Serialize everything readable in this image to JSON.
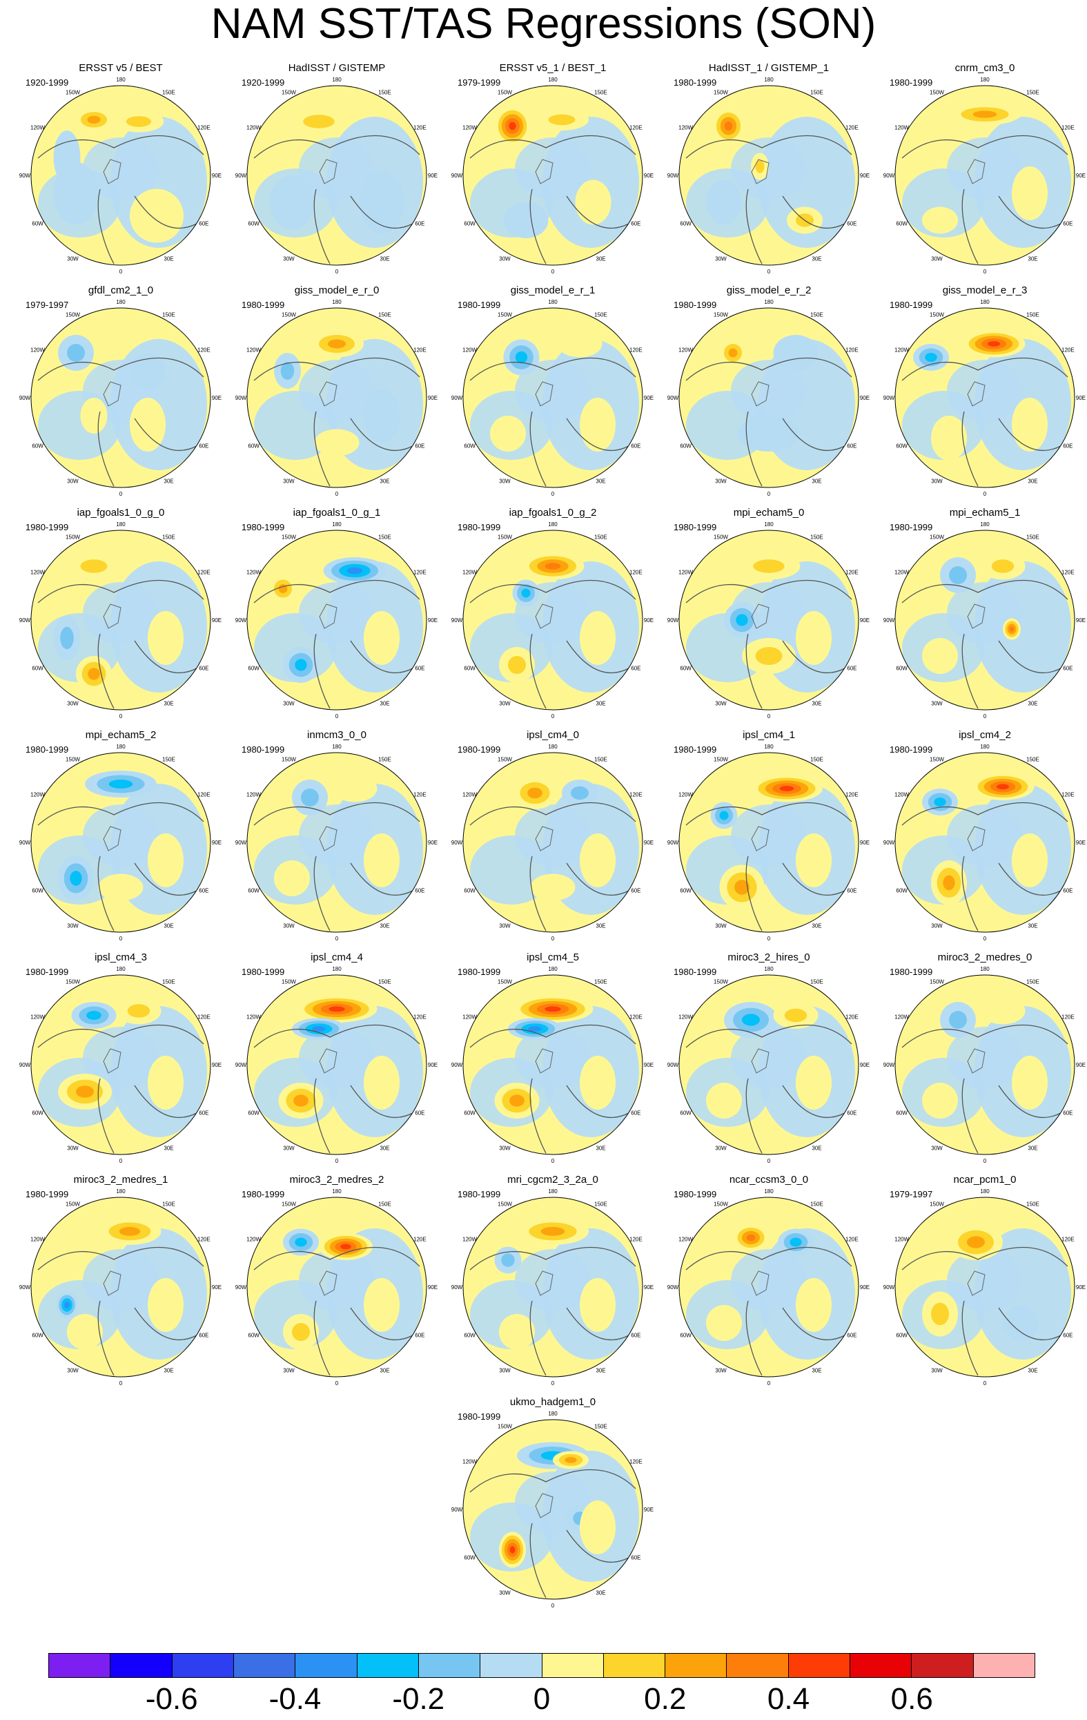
{
  "title": "NAM SST/TAS Regressions (SON)",
  "panel_degree_labels": [
    "180",
    "150E",
    "120E",
    "90E",
    "60E",
    "30E",
    "0",
    "30W",
    "60W",
    "90W",
    "120W",
    "150W"
  ],
  "panels": [
    {
      "title": "ERSST v5 / BEST",
      "years": "1920-1999",
      "blobs": [
        [
          -0.3,
          -0.62,
          0.22,
          0.13,
          0.3
        ],
        [
          0.2,
          -0.6,
          0.28,
          0.12,
          0.2
        ],
        [
          -0.5,
          0.2,
          0.25,
          0.35,
          -0.1
        ],
        [
          0.4,
          0.45,
          0.3,
          0.3,
          0.1
        ],
        [
          -0.6,
          -0.2,
          0.15,
          0.3,
          -0.1
        ]
      ]
    },
    {
      "title": "HadISST / GISTEMP",
      "years": "1920-1999",
      "blobs": [
        [
          -0.2,
          -0.6,
          0.35,
          0.15,
          0.2
        ],
        [
          -0.5,
          0.3,
          0.25,
          0.3,
          -0.1
        ],
        [
          0.5,
          0.3,
          0.25,
          0.35,
          -0.1
        ]
      ]
    },
    {
      "title": "ERSST v5_1 / BEST_1",
      "years": "1979-1999",
      "blobs": [
        [
          -0.45,
          -0.55,
          0.2,
          0.22,
          0.5
        ],
        [
          0.1,
          -0.62,
          0.3,
          0.12,
          0.2
        ],
        [
          -0.3,
          0.5,
          0.25,
          0.2,
          -0.1
        ],
        [
          0.45,
          0.3,
          0.2,
          0.25,
          0.1
        ]
      ]
    },
    {
      "title": "HadISST_1 / GISTEMP_1",
      "years": "1980-1999",
      "blobs": [
        [
          -0.45,
          -0.55,
          0.18,
          0.2,
          0.4
        ],
        [
          -0.1,
          -0.1,
          0.1,
          0.15,
          0.2
        ],
        [
          0.4,
          0.5,
          0.2,
          0.15,
          0.2
        ],
        [
          -0.5,
          0.3,
          0.2,
          0.25,
          -0.1
        ]
      ]
    },
    {
      "title": "cnrm_cm3_0",
      "years": "1980-1999",
      "blobs": [
        [
          0.0,
          -0.68,
          0.4,
          0.12,
          0.25
        ],
        [
          -0.5,
          0.5,
          0.2,
          0.15,
          0.1
        ],
        [
          0.5,
          0.2,
          0.2,
          0.3,
          0.1
        ]
      ]
    },
    {
      "title": "gfdl_cm2_1_0",
      "years": "1979-1997",
      "blobs": [
        [
          -0.5,
          -0.5,
          0.2,
          0.2,
          -0.2
        ],
        [
          0.3,
          -0.3,
          0.2,
          0.2,
          -0.1
        ],
        [
          0.3,
          0.3,
          0.2,
          0.3,
          0.1
        ],
        [
          -0.3,
          0.2,
          0.15,
          0.2,
          0.1
        ]
      ]
    },
    {
      "title": "giss_model_e_r_0",
      "years": "1980-1999",
      "blobs": [
        [
          0.0,
          -0.6,
          0.3,
          0.15,
          0.3
        ],
        [
          -0.55,
          -0.3,
          0.15,
          0.2,
          -0.2
        ],
        [
          0.0,
          0.5,
          0.25,
          0.15,
          0.1
        ],
        [
          0.5,
          0.2,
          0.2,
          0.3,
          -0.1
        ]
      ]
    },
    {
      "title": "giss_model_e_r_1",
      "years": "1980-1999",
      "blobs": [
        [
          -0.35,
          -0.45,
          0.2,
          0.2,
          -0.3
        ],
        [
          0.3,
          -0.6,
          0.25,
          0.15,
          0.1
        ],
        [
          -0.5,
          0.4,
          0.2,
          0.2,
          0.1
        ],
        [
          0.5,
          0.3,
          0.2,
          0.3,
          0.1
        ]
      ]
    },
    {
      "title": "giss_model_e_r_2",
      "years": "1980-1999",
      "blobs": [
        [
          -0.4,
          -0.5,
          0.15,
          0.15,
          0.35
        ],
        [
          0.3,
          -0.5,
          0.25,
          0.2,
          -0.1
        ],
        [
          0.0,
          0.4,
          0.35,
          0.2,
          -0.1
        ]
      ]
    },
    {
      "title": "giss_model_e_r_3",
      "years": "1980-1999",
      "blobs": [
        [
          0.1,
          -0.6,
          0.35,
          0.15,
          0.5
        ],
        [
          -0.6,
          -0.45,
          0.2,
          0.15,
          -0.3
        ],
        [
          -0.4,
          0.45,
          0.2,
          0.25,
          0.15
        ],
        [
          0.5,
          0.3,
          0.2,
          0.3,
          0.1
        ]
      ]
    },
    {
      "title": "iap_fgoals1_0_g_0",
      "years": "1980-1999",
      "blobs": [
        [
          -0.3,
          -0.6,
          0.3,
          0.15,
          0.2
        ],
        [
          -0.3,
          0.6,
          0.2,
          0.2,
          0.35
        ],
        [
          -0.6,
          0.2,
          0.15,
          0.25,
          -0.2
        ],
        [
          0.5,
          0.2,
          0.2,
          0.3,
          0.1
        ]
      ]
    },
    {
      "title": "iap_fgoals1_0_g_1",
      "years": "1980-1999",
      "blobs": [
        [
          0.2,
          -0.55,
          0.35,
          0.15,
          -0.4
        ],
        [
          -0.4,
          0.5,
          0.2,
          0.2,
          -0.3
        ],
        [
          -0.6,
          -0.35,
          0.15,
          0.15,
          0.3
        ],
        [
          0.5,
          0.2,
          0.2,
          0.3,
          0.1
        ]
      ]
    },
    {
      "title": "iap_fgoals1_0_g_2",
      "years": "1980-1999",
      "blobs": [
        [
          0.0,
          -0.6,
          0.35,
          0.15,
          0.4
        ],
        [
          -0.3,
          -0.3,
          0.15,
          0.15,
          -0.3
        ],
        [
          -0.4,
          0.5,
          0.2,
          0.2,
          0.2
        ],
        [
          0.5,
          0.2,
          0.2,
          0.3,
          0.1
        ]
      ]
    },
    {
      "title": "mpi_echam5_0",
      "years": "1980-1999",
      "blobs": [
        [
          0.0,
          -0.6,
          0.35,
          0.15,
          0.2
        ],
        [
          -0.3,
          0.0,
          0.2,
          0.2,
          -0.3
        ],
        [
          0.0,
          0.4,
          0.3,
          0.2,
          0.2
        ],
        [
          0.5,
          0.2,
          0.2,
          0.3,
          0.1
        ]
      ]
    },
    {
      "title": "mpi_echam5_1",
      "years": "1980-1999",
      "blobs": [
        [
          -0.3,
          -0.5,
          0.2,
          0.2,
          -0.2
        ],
        [
          0.2,
          -0.6,
          0.25,
          0.15,
          0.2
        ],
        [
          0.3,
          0.1,
          0.1,
          0.12,
          0.4
        ],
        [
          -0.5,
          0.4,
          0.2,
          0.2,
          0.1
        ]
      ]
    },
    {
      "title": "mpi_echam5_2",
      "years": "1980-1999",
      "blobs": [
        [
          0.0,
          -0.65,
          0.4,
          0.15,
          -0.3
        ],
        [
          -0.5,
          0.4,
          0.2,
          0.25,
          -0.3
        ],
        [
          0.0,
          0.5,
          0.25,
          0.15,
          0.1
        ],
        [
          0.5,
          0.2,
          0.2,
          0.3,
          0.1
        ]
      ]
    },
    {
      "title": "inmcm3_0_0",
      "years": "1980-1999",
      "blobs": [
        [
          -0.3,
          -0.5,
          0.2,
          0.2,
          -0.2
        ],
        [
          0.2,
          -0.6,
          0.25,
          0.15,
          0.1
        ],
        [
          -0.5,
          0.4,
          0.2,
          0.2,
          0.1
        ],
        [
          0.5,
          0.2,
          0.2,
          0.3,
          0.1
        ]
      ]
    },
    {
      "title": "ipsl_cm4_0",
      "years": "1980-1999",
      "blobs": [
        [
          -0.2,
          -0.55,
          0.25,
          0.18,
          0.3
        ],
        [
          0.3,
          -0.55,
          0.2,
          0.15,
          -0.2
        ],
        [
          0.0,
          0.5,
          0.25,
          0.15,
          0.15
        ],
        [
          0.5,
          0.2,
          0.2,
          0.3,
          0.1
        ]
      ]
    },
    {
      "title": "ipsl_cm4_1",
      "years": "1980-1999",
      "blobs": [
        [
          0.2,
          -0.6,
          0.4,
          0.15,
          0.5
        ],
        [
          -0.5,
          -0.3,
          0.15,
          0.15,
          -0.35
        ],
        [
          -0.3,
          0.5,
          0.25,
          0.25,
          0.25
        ],
        [
          0.5,
          0.2,
          0.2,
          0.3,
          0.15
        ]
      ]
    },
    {
      "title": "ipsl_cm4_2",
      "years": "1980-1999",
      "blobs": [
        [
          0.2,
          -0.62,
          0.35,
          0.15,
          0.45
        ],
        [
          -0.5,
          -0.45,
          0.2,
          0.15,
          -0.3
        ],
        [
          -0.4,
          0.45,
          0.2,
          0.25,
          0.25
        ],
        [
          0.5,
          0.2,
          0.2,
          0.3,
          0.1
        ]
      ]
    },
    {
      "title": "ipsl_cm4_3",
      "years": "1980-1999",
      "blobs": [
        [
          -0.3,
          -0.55,
          0.25,
          0.15,
          -0.35
        ],
        [
          0.2,
          -0.6,
          0.25,
          0.15,
          0.2
        ],
        [
          -0.4,
          0.3,
          0.3,
          0.2,
          0.25
        ],
        [
          0.5,
          0.2,
          0.2,
          0.3,
          0.1
        ]
      ]
    },
    {
      "title": "ipsl_cm4_4",
      "years": "1980-1999",
      "blobs": [
        [
          0.0,
          -0.62,
          0.45,
          0.15,
          0.45
        ],
        [
          -0.2,
          -0.4,
          0.3,
          0.12,
          -0.4
        ],
        [
          -0.4,
          0.4,
          0.25,
          0.2,
          0.3
        ],
        [
          0.5,
          0.2,
          0.2,
          0.3,
          0.1
        ]
      ]
    },
    {
      "title": "ipsl_cm4_5",
      "years": "1980-1999",
      "blobs": [
        [
          0.0,
          -0.62,
          0.45,
          0.15,
          0.45
        ],
        [
          -0.2,
          -0.4,
          0.3,
          0.12,
          -0.4
        ],
        [
          -0.4,
          0.4,
          0.25,
          0.2,
          0.3
        ],
        [
          0.5,
          0.2,
          0.2,
          0.3,
          0.1
        ]
      ]
    },
    {
      "title": "miroc3_2_hires_0",
      "years": "1980-1999",
      "blobs": [
        [
          -0.2,
          -0.5,
          0.3,
          0.2,
          -0.3
        ],
        [
          0.3,
          -0.55,
          0.25,
          0.15,
          0.2
        ],
        [
          -0.5,
          0.4,
          0.2,
          0.2,
          0.15
        ],
        [
          0.5,
          0.2,
          0.2,
          0.3,
          0.1
        ]
      ]
    },
    {
      "title": "miroc3_2_medres_0",
      "years": "1980-1999",
      "blobs": [
        [
          -0.3,
          -0.5,
          0.2,
          0.2,
          -0.2
        ],
        [
          0.2,
          -0.6,
          0.25,
          0.15,
          0.1
        ],
        [
          -0.5,
          0.4,
          0.2,
          0.2,
          0.1
        ],
        [
          0.5,
          0.2,
          0.2,
          0.3,
          0.1
        ]
      ]
    },
    {
      "title": "miroc3_2_medres_1",
      "years": "1980-1999",
      "blobs": [
        [
          0.1,
          -0.62,
          0.35,
          0.15,
          0.25
        ],
        [
          -0.6,
          0.2,
          0.12,
          0.15,
          -0.4
        ],
        [
          -0.4,
          0.5,
          0.2,
          0.2,
          0.1
        ],
        [
          0.5,
          0.2,
          0.2,
          0.3,
          0.1
        ]
      ]
    },
    {
      "title": "miroc3_2_medres_2",
      "years": "1980-1999",
      "blobs": [
        [
          0.1,
          -0.45,
          0.3,
          0.15,
          0.45
        ],
        [
          -0.4,
          -0.5,
          0.2,
          0.15,
          -0.25
        ],
        [
          -0.4,
          0.5,
          0.2,
          0.2,
          0.2
        ],
        [
          0.5,
          0.2,
          0.2,
          0.3,
          0.1
        ]
      ]
    },
    {
      "title": "mri_cgcm2_3_2a_0",
      "years": "1980-1999",
      "blobs": [
        [
          0.0,
          -0.62,
          0.4,
          0.15,
          0.35
        ],
        [
          -0.5,
          -0.3,
          0.15,
          0.15,
          -0.2
        ],
        [
          -0.4,
          0.5,
          0.2,
          0.2,
          0.1
        ],
        [
          0.5,
          0.2,
          0.2,
          0.3,
          0.1
        ]
      ]
    },
    {
      "title": "ncar_ccsm3_0_0",
      "years": "1980-1999",
      "blobs": [
        [
          -0.2,
          -0.55,
          0.2,
          0.15,
          0.4
        ],
        [
          0.3,
          -0.5,
          0.2,
          0.15,
          -0.3
        ],
        [
          -0.5,
          0.4,
          0.2,
          0.2,
          0.1
        ],
        [
          0.5,
          0.2,
          0.2,
          0.3,
          0.1
        ]
      ]
    },
    {
      "title": "ncar_pcm1_0",
      "years": "1979-1997",
      "blobs": [
        [
          -0.1,
          -0.5,
          0.3,
          0.2,
          0.3
        ],
        [
          -0.5,
          0.3,
          0.2,
          0.25,
          0.2
        ],
        [
          0.4,
          0.4,
          0.2,
          0.2,
          -0.1
        ]
      ]
    },
    {
      "title": "ukmo_hadgem1_0",
      "years": "1980-1999",
      "blobs": [
        [
          0.0,
          -0.6,
          0.4,
          0.15,
          -0.3
        ],
        [
          0.2,
          -0.55,
          0.2,
          0.1,
          0.3
        ],
        [
          -0.45,
          0.45,
          0.15,
          0.2,
          0.45
        ],
        [
          0.3,
          0.1,
          0.15,
          0.15,
          -0.2
        ],
        [
          0.5,
          0.2,
          0.2,
          0.3,
          0.1
        ]
      ]
    }
  ],
  "colorbar": {
    "colors": [
      "#7e1ff1",
      "#1200fc",
      "#2d3ff0",
      "#3a6fe6",
      "#2b92f4",
      "#03c0f8",
      "#77c6f1",
      "#b6dcf4",
      "#fef791",
      "#fcd42c",
      "#fca30c",
      "#fe7e0c",
      "#fe3d06",
      "#e80105",
      "#cf1e1f",
      "#fdb1b1"
    ],
    "labels": [
      "-0.6",
      "-0.4",
      "-0.2",
      "0",
      "0.2",
      "0.4",
      "0.6"
    ],
    "label_values": [
      -0.6,
      -0.4,
      -0.2,
      0,
      0.2,
      0.4,
      0.6
    ],
    "min": -0.8,
    "max": 0.8
  }
}
